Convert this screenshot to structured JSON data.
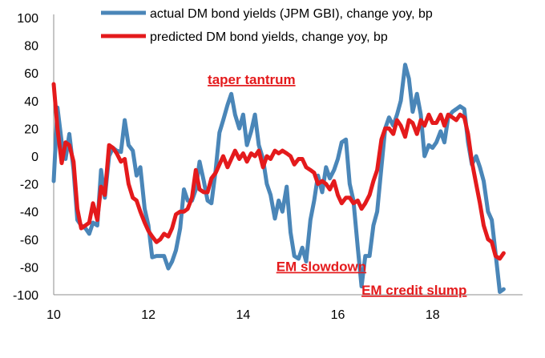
{
  "chart_data": {
    "type": "line",
    "xlim": [
      10,
      19.9
    ],
    "ylim": [
      -100,
      100
    ],
    "y_ticks": [
      "100",
      "80",
      "60",
      "40",
      "20",
      "0",
      "-20",
      "-40",
      "-60",
      "-80",
      "-100"
    ],
    "x_ticks": [
      "10",
      "12",
      "14",
      "16",
      "18"
    ],
    "grid": false,
    "legend_placement": "top",
    "series": [
      {
        "name": "actual DM bond yields (JPM GBI), change yoy, bp",
        "color": "#4a86b8",
        "points": [
          [
            10.0,
            -18
          ],
          [
            10.08,
            35
          ],
          [
            10.17,
            10
          ],
          [
            10.25,
            -2
          ],
          [
            10.33,
            16
          ],
          [
            10.42,
            -10
          ],
          [
            10.5,
            -46
          ],
          [
            10.58,
            -50
          ],
          [
            10.67,
            -52
          ],
          [
            10.75,
            -56
          ],
          [
            10.83,
            -48
          ],
          [
            10.92,
            -50
          ],
          [
            11.0,
            -10
          ],
          [
            11.08,
            -30
          ],
          [
            11.17,
            0
          ],
          [
            11.25,
            6
          ],
          [
            11.33,
            4
          ],
          [
            11.42,
            3
          ],
          [
            11.5,
            26
          ],
          [
            11.58,
            8
          ],
          [
            11.67,
            4
          ],
          [
            11.75,
            -14
          ],
          [
            11.83,
            -8
          ],
          [
            11.92,
            -38
          ],
          [
            12.0,
            -50
          ],
          [
            12.08,
            -73
          ],
          [
            12.17,
            -72
          ],
          [
            12.25,
            -72
          ],
          [
            12.33,
            -72
          ],
          [
            12.42,
            -81
          ],
          [
            12.5,
            -76
          ],
          [
            12.58,
            -68
          ],
          [
            12.67,
            -52
          ],
          [
            12.75,
            -24
          ],
          [
            12.83,
            -32
          ],
          [
            12.92,
            -32
          ],
          [
            13.0,
            -24
          ],
          [
            13.08,
            -4
          ],
          [
            13.17,
            -18
          ],
          [
            13.25,
            -32
          ],
          [
            13.33,
            -34
          ],
          [
            13.42,
            -10
          ],
          [
            13.5,
            17
          ],
          [
            13.58,
            26
          ],
          [
            13.67,
            37
          ],
          [
            13.75,
            45
          ],
          [
            13.83,
            30
          ],
          [
            13.92,
            20
          ],
          [
            14.0,
            30
          ],
          [
            14.08,
            8
          ],
          [
            14.17,
            18
          ],
          [
            14.25,
            30
          ],
          [
            14.33,
            8
          ],
          [
            14.42,
            -2
          ],
          [
            14.5,
            -20
          ],
          [
            14.58,
            -28
          ],
          [
            14.67,
            -45
          ],
          [
            14.75,
            -32
          ],
          [
            14.83,
            -40
          ],
          [
            14.92,
            -22
          ],
          [
            15.0,
            -55
          ],
          [
            15.08,
            -72
          ],
          [
            15.17,
            -74
          ],
          [
            15.25,
            -66
          ],
          [
            15.33,
            -76
          ],
          [
            15.42,
            -46
          ],
          [
            15.5,
            -32
          ],
          [
            15.58,
            -14
          ],
          [
            15.67,
            -26
          ],
          [
            15.75,
            -8
          ],
          [
            15.83,
            -16
          ],
          [
            15.92,
            -10
          ],
          [
            16.0,
            -2
          ],
          [
            16.08,
            10
          ],
          [
            16.17,
            12
          ],
          [
            16.25,
            -20
          ],
          [
            16.33,
            -32
          ],
          [
            16.42,
            -66
          ],
          [
            16.5,
            -94
          ],
          [
            16.58,
            -72
          ],
          [
            16.67,
            -72
          ],
          [
            16.75,
            -50
          ],
          [
            16.83,
            -40
          ],
          [
            16.92,
            -8
          ],
          [
            17.0,
            20
          ],
          [
            17.08,
            28
          ],
          [
            17.17,
            22
          ],
          [
            17.25,
            30
          ],
          [
            17.33,
            40
          ],
          [
            17.42,
            66
          ],
          [
            17.5,
            56
          ],
          [
            17.58,
            32
          ],
          [
            17.67,
            45
          ],
          [
            17.75,
            30
          ],
          [
            17.83,
            0
          ],
          [
            17.92,
            8
          ],
          [
            18.0,
            6
          ],
          [
            18.08,
            10
          ],
          [
            18.17,
            18
          ],
          [
            18.25,
            10
          ],
          [
            18.33,
            28
          ],
          [
            18.42,
            32
          ],
          [
            18.5,
            34
          ],
          [
            18.58,
            36
          ],
          [
            18.67,
            34
          ],
          [
            18.75,
            10
          ],
          [
            18.83,
            -6
          ],
          [
            18.92,
            0
          ],
          [
            19.0,
            -8
          ],
          [
            19.08,
            -18
          ],
          [
            19.17,
            -40
          ],
          [
            19.25,
            -46
          ],
          [
            19.33,
            -70
          ],
          [
            19.42,
            -98
          ],
          [
            19.5,
            -96
          ]
        ]
      },
      {
        "name": "predicted DM bond yields, change yoy, bp",
        "color": "#e41a1c",
        "points": [
          [
            10.0,
            52
          ],
          [
            10.08,
            20
          ],
          [
            10.17,
            -5
          ],
          [
            10.25,
            10
          ],
          [
            10.33,
            8
          ],
          [
            10.42,
            -4
          ],
          [
            10.5,
            -38
          ],
          [
            10.58,
            -52
          ],
          [
            10.67,
            -50
          ],
          [
            10.75,
            -48
          ],
          [
            10.83,
            -34
          ],
          [
            10.92,
            -46
          ],
          [
            11.0,
            -22
          ],
          [
            11.08,
            -28
          ],
          [
            11.17,
            8
          ],
          [
            11.25,
            6
          ],
          [
            11.33,
            2
          ],
          [
            11.42,
            -4
          ],
          [
            11.5,
            -2
          ],
          [
            11.58,
            -20
          ],
          [
            11.67,
            -30
          ],
          [
            11.75,
            -32
          ],
          [
            11.83,
            -40
          ],
          [
            11.92,
            -48
          ],
          [
            12.0,
            -54
          ],
          [
            12.08,
            -58
          ],
          [
            12.17,
            -62
          ],
          [
            12.25,
            -60
          ],
          [
            12.33,
            -56
          ],
          [
            12.42,
            -58
          ],
          [
            12.5,
            -52
          ],
          [
            12.58,
            -42
          ],
          [
            12.67,
            -40
          ],
          [
            12.75,
            -40
          ],
          [
            12.83,
            -38
          ],
          [
            12.92,
            -30
          ],
          [
            13.0,
            -10
          ],
          [
            13.08,
            -24
          ],
          [
            13.17,
            -26
          ],
          [
            13.25,
            -26
          ],
          [
            13.33,
            -16
          ],
          [
            13.42,
            -12
          ],
          [
            13.5,
            -6
          ],
          [
            13.58,
            0
          ],
          [
            13.67,
            -8
          ],
          [
            13.75,
            -2
          ],
          [
            13.83,
            4
          ],
          [
            13.92,
            -2
          ],
          [
            14.0,
            2
          ],
          [
            14.08,
            -4
          ],
          [
            14.17,
            2
          ],
          [
            14.25,
            0
          ],
          [
            14.33,
            4
          ],
          [
            14.42,
            -8
          ],
          [
            14.5,
            0
          ],
          [
            14.58,
            -2
          ],
          [
            14.67,
            4
          ],
          [
            14.75,
            2
          ],
          [
            14.83,
            4
          ],
          [
            14.92,
            2
          ],
          [
            15.0,
            0
          ],
          [
            15.08,
            -6
          ],
          [
            15.17,
            -2
          ],
          [
            15.25,
            -2
          ],
          [
            15.33,
            -8
          ],
          [
            15.42,
            -10
          ],
          [
            15.5,
            -12
          ],
          [
            15.58,
            -20
          ],
          [
            15.67,
            -18
          ],
          [
            15.75,
            -20
          ],
          [
            15.83,
            -24
          ],
          [
            15.92,
            -18
          ],
          [
            16.0,
            -28
          ],
          [
            16.08,
            -34
          ],
          [
            16.17,
            -30
          ],
          [
            16.25,
            -30
          ],
          [
            16.33,
            -34
          ],
          [
            16.42,
            -32
          ],
          [
            16.5,
            -38
          ],
          [
            16.58,
            -34
          ],
          [
            16.67,
            -28
          ],
          [
            16.75,
            -18
          ],
          [
            16.83,
            -10
          ],
          [
            16.92,
            12
          ],
          [
            17.0,
            20
          ],
          [
            17.08,
            20
          ],
          [
            17.17,
            16
          ],
          [
            17.25,
            26
          ],
          [
            17.33,
            22
          ],
          [
            17.42,
            14
          ],
          [
            17.5,
            26
          ],
          [
            17.58,
            24
          ],
          [
            17.67,
            16
          ],
          [
            17.75,
            26
          ],
          [
            17.83,
            22
          ],
          [
            17.92,
            30
          ],
          [
            18.0,
            24
          ],
          [
            18.08,
            24
          ],
          [
            18.17,
            30
          ],
          [
            18.25,
            22
          ],
          [
            18.33,
            30
          ],
          [
            18.42,
            28
          ],
          [
            18.5,
            26
          ],
          [
            18.58,
            30
          ],
          [
            18.67,
            28
          ],
          [
            18.75,
            16
          ],
          [
            18.83,
            -4
          ],
          [
            18.92,
            -20
          ],
          [
            19.0,
            -34
          ],
          [
            19.08,
            -50
          ],
          [
            19.17,
            -60
          ],
          [
            19.25,
            -62
          ],
          [
            19.33,
            -72
          ],
          [
            19.42,
            -74
          ],
          [
            19.5,
            -70
          ]
        ]
      }
    ],
    "annotations": [
      {
        "text": "taper tantrum",
        "x": 13.25,
        "y": 52
      },
      {
        "text": "EM slowdown",
        "x": 14.7,
        "y": -83
      },
      {
        "text": "EM credit slump",
        "x": 16.5,
        "y": -100
      }
    ]
  }
}
